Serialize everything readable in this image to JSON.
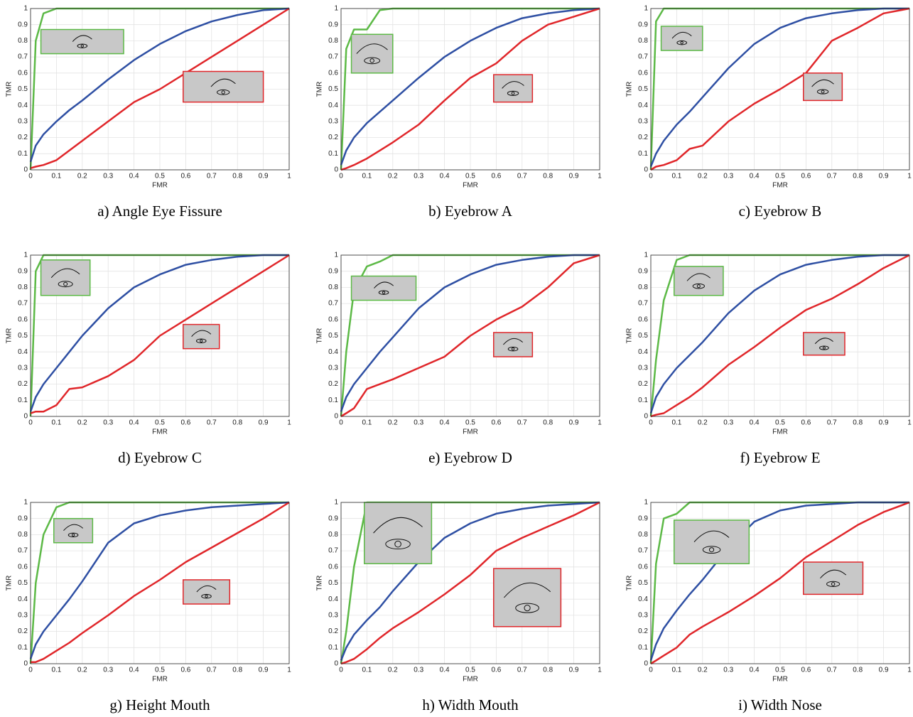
{
  "chart_data": [
    {
      "type": "line",
      "caption": "a) Angle Eye Fissure",
      "xlabel": "FMR",
      "ylabel": "TMR",
      "x": [
        0,
        0.02,
        0.05,
        0.1,
        0.15,
        0.2,
        0.3,
        0.4,
        0.5,
        0.6,
        0.7,
        0.8,
        0.9,
        1
      ],
      "series": [
        {
          "color": "#5cb946",
          "values": [
            0,
            0.8,
            0.97,
            1,
            1,
            1,
            1,
            1,
            1,
            1,
            1,
            1,
            1,
            1
          ]
        },
        {
          "color": "#2e4fa3",
          "values": [
            0.05,
            0.15,
            0.22,
            0.3,
            0.37,
            0.43,
            0.56,
            0.68,
            0.78,
            0.86,
            0.92,
            0.96,
            0.99,
            1
          ]
        },
        {
          "color": "#e0262a",
          "values": [
            0.01,
            0.02,
            0.03,
            0.06,
            0.12,
            0.18,
            0.3,
            0.42,
            0.5,
            0.6,
            0.7,
            0.8,
            0.9,
            1
          ]
        }
      ],
      "xlim": [
        0,
        1
      ],
      "ylim": [
        0,
        1
      ],
      "xticks": [
        0,
        0.1,
        0.2,
        0.3,
        0.4,
        0.5,
        0.6,
        0.7,
        0.8,
        0.9,
        1
      ],
      "yticks": [
        0,
        0.1,
        0.2,
        0.3,
        0.4,
        0.5,
        0.6,
        0.7,
        0.8,
        0.9,
        1
      ],
      "grid": true
    },
    {
      "type": "line",
      "caption": "b) Eyebrow A",
      "xlabel": "FMR",
      "ylabel": "TMR",
      "x": [
        0,
        0.02,
        0.05,
        0.1,
        0.15,
        0.2,
        0.3,
        0.4,
        0.5,
        0.6,
        0.7,
        0.8,
        0.9,
        1
      ],
      "series": [
        {
          "color": "#5cb946",
          "values": [
            0,
            0.75,
            0.87,
            0.87,
            0.99,
            1,
            1,
            1,
            1,
            1,
            1,
            1,
            1,
            1
          ]
        },
        {
          "color": "#2e4fa3",
          "values": [
            0.03,
            0.12,
            0.2,
            0.29,
            0.36,
            0.43,
            0.57,
            0.7,
            0.8,
            0.88,
            0.94,
            0.97,
            0.99,
            1
          ]
        },
        {
          "color": "#e0262a",
          "values": [
            0,
            0.01,
            0.03,
            0.07,
            0.12,
            0.17,
            0.28,
            0.43,
            0.57,
            0.66,
            0.8,
            0.9,
            0.95,
            1
          ]
        }
      ],
      "xlim": [
        0,
        1
      ],
      "ylim": [
        0,
        1
      ],
      "xticks": [
        0,
        0.1,
        0.2,
        0.3,
        0.4,
        0.5,
        0.6,
        0.7,
        0.8,
        0.9,
        1
      ],
      "yticks": [
        0,
        0.1,
        0.2,
        0.3,
        0.4,
        0.5,
        0.6,
        0.7,
        0.8,
        0.9,
        1
      ],
      "grid": true
    },
    {
      "type": "line",
      "caption": "c) Eyebrow B",
      "xlabel": "FMR",
      "ylabel": "TMR",
      "x": [
        0,
        0.02,
        0.05,
        0.1,
        0.15,
        0.2,
        0.3,
        0.4,
        0.5,
        0.6,
        0.7,
        0.8,
        0.9,
        1
      ],
      "series": [
        {
          "color": "#5cb946",
          "values": [
            0,
            0.92,
            1,
            1,
            1,
            1,
            1,
            1,
            1,
            1,
            1,
            1,
            1,
            1
          ]
        },
        {
          "color": "#2e4fa3",
          "values": [
            0.02,
            0.1,
            0.18,
            0.28,
            0.36,
            0.45,
            0.63,
            0.78,
            0.88,
            0.94,
            0.97,
            0.99,
            1,
            1
          ]
        },
        {
          "color": "#e0262a",
          "values": [
            0,
            0.02,
            0.03,
            0.06,
            0.13,
            0.15,
            0.3,
            0.41,
            0.5,
            0.6,
            0.8,
            0.88,
            0.97,
            1
          ]
        }
      ],
      "xlim": [
        0,
        1
      ],
      "ylim": [
        0,
        1
      ],
      "xticks": [
        0,
        0.1,
        0.2,
        0.3,
        0.4,
        0.5,
        0.6,
        0.7,
        0.8,
        0.9,
        1
      ],
      "yticks": [
        0,
        0.1,
        0.2,
        0.3,
        0.4,
        0.5,
        0.6,
        0.7,
        0.8,
        0.9,
        1
      ],
      "grid": true
    },
    {
      "type": "line",
      "caption": "d) Eyebrow C",
      "xlabel": "FMR",
      "ylabel": "TMR",
      "x": [
        0,
        0.02,
        0.05,
        0.1,
        0.15,
        0.2,
        0.3,
        0.4,
        0.5,
        0.6,
        0.7,
        0.8,
        0.9,
        1
      ],
      "series": [
        {
          "color": "#5cb946",
          "values": [
            0,
            0.9,
            1,
            1,
            1,
            1,
            1,
            1,
            1,
            1,
            1,
            1,
            1,
            1
          ]
        },
        {
          "color": "#2e4fa3",
          "values": [
            0.03,
            0.12,
            0.2,
            0.3,
            0.4,
            0.5,
            0.67,
            0.8,
            0.88,
            0.94,
            0.97,
            0.99,
            1,
            1
          ]
        },
        {
          "color": "#e0262a",
          "values": [
            0.02,
            0.03,
            0.03,
            0.07,
            0.17,
            0.18,
            0.25,
            0.35,
            0.5,
            0.6,
            0.7,
            0.8,
            0.9,
            1
          ]
        }
      ],
      "xlim": [
        0,
        1
      ],
      "ylim": [
        0,
        1
      ],
      "xticks": [
        0,
        0.1,
        0.2,
        0.3,
        0.4,
        0.5,
        0.6,
        0.7,
        0.8,
        0.9,
        1
      ],
      "yticks": [
        0,
        0.1,
        0.2,
        0.3,
        0.4,
        0.5,
        0.6,
        0.7,
        0.8,
        0.9,
        1
      ],
      "grid": true
    },
    {
      "type": "line",
      "caption": "e) Eyebrow D",
      "xlabel": "FMR",
      "ylabel": "TMR",
      "x": [
        0,
        0.02,
        0.05,
        0.1,
        0.15,
        0.2,
        0.3,
        0.4,
        0.5,
        0.6,
        0.7,
        0.8,
        0.9,
        1
      ],
      "series": [
        {
          "color": "#5cb946",
          "values": [
            0,
            0.4,
            0.78,
            0.93,
            0.96,
            1,
            1,
            1,
            1,
            1,
            1,
            1,
            1,
            1
          ]
        },
        {
          "color": "#2e4fa3",
          "values": [
            0.03,
            0.12,
            0.2,
            0.3,
            0.4,
            0.49,
            0.67,
            0.8,
            0.88,
            0.94,
            0.97,
            0.99,
            1,
            1
          ]
        },
        {
          "color": "#e0262a",
          "values": [
            0,
            0.02,
            0.05,
            0.17,
            0.2,
            0.23,
            0.3,
            0.37,
            0.5,
            0.6,
            0.68,
            0.8,
            0.95,
            1
          ]
        }
      ],
      "xlim": [
        0,
        1
      ],
      "ylim": [
        0,
        1
      ],
      "xticks": [
        0,
        0.1,
        0.2,
        0.3,
        0.4,
        0.5,
        0.6,
        0.7,
        0.8,
        0.9,
        1
      ],
      "yticks": [
        0,
        0.1,
        0.2,
        0.3,
        0.4,
        0.5,
        0.6,
        0.7,
        0.8,
        0.9,
        1
      ],
      "grid": true
    },
    {
      "type": "line",
      "caption": "f) Eyebrow E",
      "xlabel": "FMR",
      "ylabel": "TMR",
      "x": [
        0,
        0.02,
        0.05,
        0.1,
        0.15,
        0.2,
        0.3,
        0.4,
        0.5,
        0.6,
        0.7,
        0.8,
        0.9,
        1
      ],
      "series": [
        {
          "color": "#5cb946",
          "values": [
            0,
            0.35,
            0.72,
            0.97,
            1,
            1,
            1,
            1,
            1,
            1,
            1,
            1,
            1,
            1
          ]
        },
        {
          "color": "#2e4fa3",
          "values": [
            0.02,
            0.12,
            0.2,
            0.3,
            0.38,
            0.46,
            0.64,
            0.78,
            0.88,
            0.94,
            0.97,
            0.99,
            1,
            1
          ]
        },
        {
          "color": "#e0262a",
          "values": [
            0,
            0.01,
            0.02,
            0.07,
            0.12,
            0.18,
            0.32,
            0.43,
            0.55,
            0.66,
            0.73,
            0.82,
            0.92,
            1
          ]
        }
      ],
      "xlim": [
        0,
        1
      ],
      "ylim": [
        0,
        1
      ],
      "xticks": [
        0,
        0.1,
        0.2,
        0.3,
        0.4,
        0.5,
        0.6,
        0.7,
        0.8,
        0.9,
        1
      ],
      "yticks": [
        0,
        0.1,
        0.2,
        0.3,
        0.4,
        0.5,
        0.6,
        0.7,
        0.8,
        0.9,
        1
      ],
      "grid": true
    },
    {
      "type": "line",
      "caption": "g) Height Mouth",
      "xlabel": "FMR",
      "ylabel": "TMR",
      "x": [
        0,
        0.02,
        0.05,
        0.1,
        0.15,
        0.2,
        0.3,
        0.4,
        0.5,
        0.6,
        0.7,
        0.8,
        0.9,
        1
      ],
      "series": [
        {
          "color": "#5cb946",
          "values": [
            0,
            0.5,
            0.8,
            0.97,
            1,
            1,
            1,
            1,
            1,
            1,
            1,
            1,
            1,
            1
          ]
        },
        {
          "color": "#2e4fa3",
          "values": [
            0.03,
            0.12,
            0.2,
            0.3,
            0.4,
            0.51,
            0.75,
            0.87,
            0.92,
            0.95,
            0.97,
            0.98,
            0.99,
            1
          ]
        },
        {
          "color": "#e0262a",
          "values": [
            0.01,
            0.01,
            0.03,
            0.08,
            0.13,
            0.19,
            0.3,
            0.42,
            0.52,
            0.63,
            0.72,
            0.81,
            0.9,
            1
          ]
        }
      ],
      "xlim": [
        0,
        1
      ],
      "ylim": [
        0,
        1
      ],
      "xticks": [
        0,
        0.1,
        0.2,
        0.3,
        0.4,
        0.5,
        0.6,
        0.7,
        0.8,
        0.9,
        1
      ],
      "yticks": [
        0,
        0.1,
        0.2,
        0.3,
        0.4,
        0.5,
        0.6,
        0.7,
        0.8,
        0.9,
        1
      ],
      "grid": true
    },
    {
      "type": "line",
      "caption": "h) Width Mouth",
      "xlabel": "FMR",
      "ylabel": "TMR",
      "x": [
        0,
        0.02,
        0.05,
        0.1,
        0.15,
        0.2,
        0.3,
        0.4,
        0.5,
        0.6,
        0.7,
        0.8,
        0.9,
        1
      ],
      "series": [
        {
          "color": "#5cb946",
          "values": [
            0,
            0.2,
            0.6,
            1,
            1,
            1,
            1,
            1,
            1,
            1,
            1,
            1,
            1,
            1
          ]
        },
        {
          "color": "#2e4fa3",
          "values": [
            0.02,
            0.1,
            0.18,
            0.27,
            0.35,
            0.45,
            0.63,
            0.78,
            0.87,
            0.93,
            0.96,
            0.98,
            0.99,
            1
          ]
        },
        {
          "color": "#e0262a",
          "values": [
            0,
            0.01,
            0.03,
            0.09,
            0.16,
            0.22,
            0.32,
            0.43,
            0.55,
            0.7,
            0.78,
            0.85,
            0.92,
            1
          ]
        }
      ],
      "xlim": [
        0,
        1
      ],
      "ylim": [
        0,
        1
      ],
      "xticks": [
        0,
        0.1,
        0.2,
        0.3,
        0.4,
        0.5,
        0.6,
        0.7,
        0.8,
        0.9,
        1
      ],
      "yticks": [
        0,
        0.1,
        0.2,
        0.3,
        0.4,
        0.5,
        0.6,
        0.7,
        0.8,
        0.9,
        1
      ],
      "grid": true
    },
    {
      "type": "line",
      "caption": "i) Width Nose",
      "xlabel": "FMR",
      "ylabel": "TMR",
      "x": [
        0,
        0.02,
        0.05,
        0.1,
        0.15,
        0.2,
        0.3,
        0.4,
        0.5,
        0.6,
        0.7,
        0.8,
        0.9,
        1
      ],
      "series": [
        {
          "color": "#5cb946",
          "values": [
            0,
            0.62,
            0.9,
            0.93,
            1,
            1,
            1,
            1,
            1,
            1,
            1,
            1,
            1,
            1
          ]
        },
        {
          "color": "#2e4fa3",
          "values": [
            0.02,
            0.12,
            0.22,
            0.33,
            0.43,
            0.52,
            0.72,
            0.88,
            0.95,
            0.98,
            0.99,
            1,
            1,
            1
          ]
        },
        {
          "color": "#e0262a",
          "values": [
            0,
            0.02,
            0.05,
            0.1,
            0.18,
            0.23,
            0.32,
            0.42,
            0.53,
            0.66,
            0.76,
            0.86,
            0.94,
            1
          ]
        }
      ],
      "xlim": [
        0,
        1
      ],
      "ylim": [
        0,
        1
      ],
      "xticks": [
        0,
        0.1,
        0.2,
        0.3,
        0.4,
        0.5,
        0.6,
        0.7,
        0.8,
        0.9,
        1
      ],
      "yticks": [
        0,
        0.1,
        0.2,
        0.3,
        0.4,
        0.5,
        0.6,
        0.7,
        0.8,
        0.9,
        1
      ],
      "grid": true
    }
  ]
}
